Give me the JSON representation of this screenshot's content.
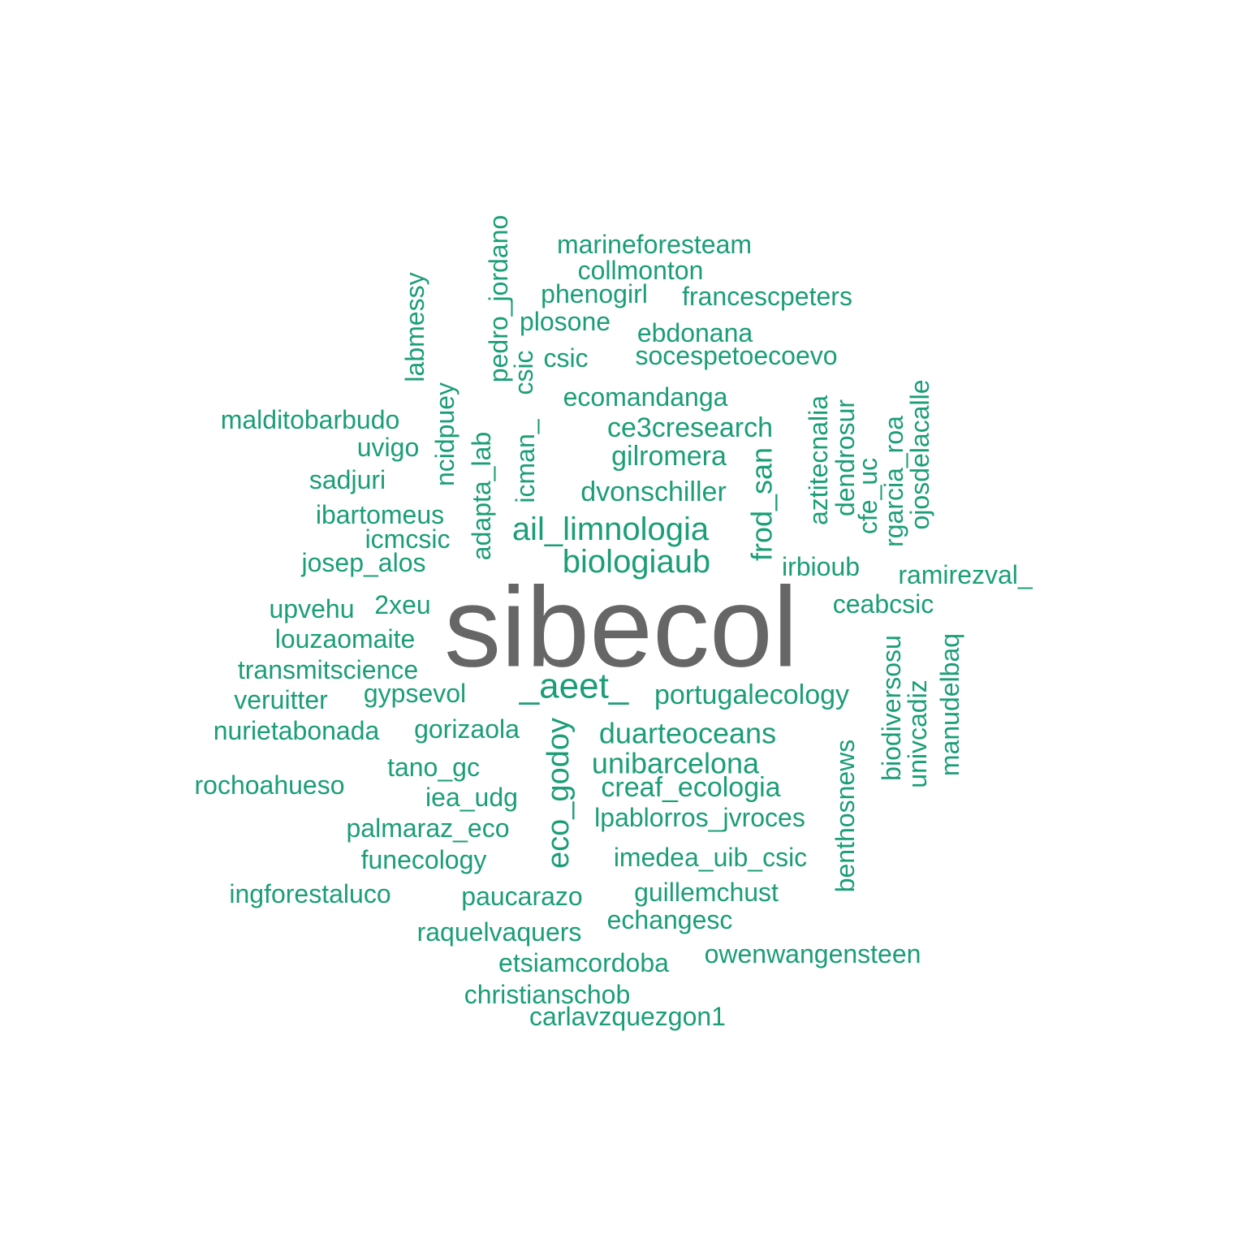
{
  "colors": {
    "background": "#ffffff",
    "primary_word": "#666666",
    "word": "#1b9e77"
  },
  "words": [
    "sibecol",
    "_aeet_",
    "biologiaub",
    "ail_limnologia",
    "eco_godoy",
    "unibarcelona",
    "portugalecology",
    "duarteoceans",
    "creaf_ecologia",
    "dvonschiller",
    "gilromera",
    "ce3cresearch",
    "frod_san",
    "marineforesteam",
    "collmonton",
    "phenogirl",
    "francescpeters",
    "plosone",
    "ebdonana",
    "socespetoecoevo",
    "csic",
    "ecomandanga",
    "malditobarbudo",
    "uvigo",
    "sadjuri",
    "ibartomeus",
    "icmcsic",
    "josep_alos",
    "upvehu",
    "2xeu",
    "louzaomaite",
    "transmitscience",
    "veruitter",
    "gypsevol",
    "nurietabonada",
    "gorizaola",
    "tano_gc",
    "rochoahueso",
    "iea_udg",
    "palmaraz_eco",
    "funecology",
    "ingforestaluco",
    "paucarazo",
    "guillemchust",
    "raquelvaquers",
    "echangesc",
    "etsiamcordoba",
    "owenwangensteen",
    "christianschob",
    "carlavzquezgon1",
    "imedea_uib_csic",
    "lpablorros_jvroces",
    "irbioub",
    "ramirezval_",
    "ceabcsic",
    "labmessy",
    "pedro_jordano",
    "csic",
    "icman_",
    "ncidpuey",
    "adapta_lab",
    "aztitecnalia",
    "dendrosur",
    "cfe_uc",
    "rgarcia_roa",
    "ojosdelacalle",
    "biodiversosu",
    "univcadiz",
    "manudelbaq",
    "benthosnews"
  ]
}
